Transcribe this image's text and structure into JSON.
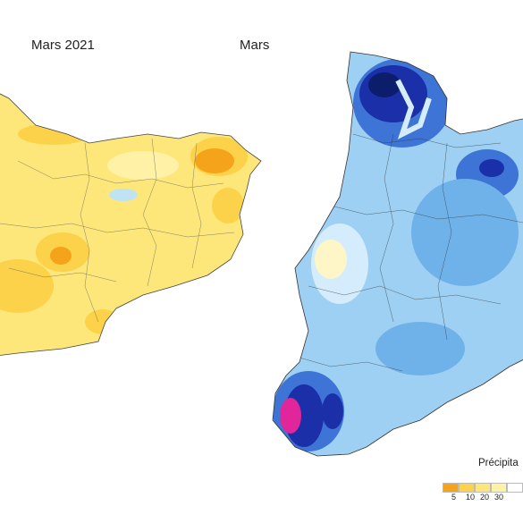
{
  "left_map": {
    "title": "Mars 2021",
    "colors": {
      "base": "#fde77a",
      "light": "#fff2a6",
      "mid": "#fbd24a",
      "dark": "#f5a31a",
      "blue": "#bfe3f5"
    }
  },
  "right_map": {
    "title": "Mars",
    "colors": {
      "base": "#9ed0f3",
      "light": "#d4ecfb",
      "mid": "#6fb2ea",
      "dark": "#3d74d6",
      "navy": "#1b2fa8",
      "deep": "#0b1d6b",
      "magenta": "#e0269a",
      "cream": "#fff6c8"
    }
  },
  "legend": {
    "title": "Précipita",
    "ticks": [
      "5",
      "10",
      "20",
      "30"
    ],
    "colors": [
      "#f5a31a",
      "#fbd24a",
      "#fde77a",
      "#fff2a6",
      "#ffffff",
      "#ffffff"
    ]
  }
}
